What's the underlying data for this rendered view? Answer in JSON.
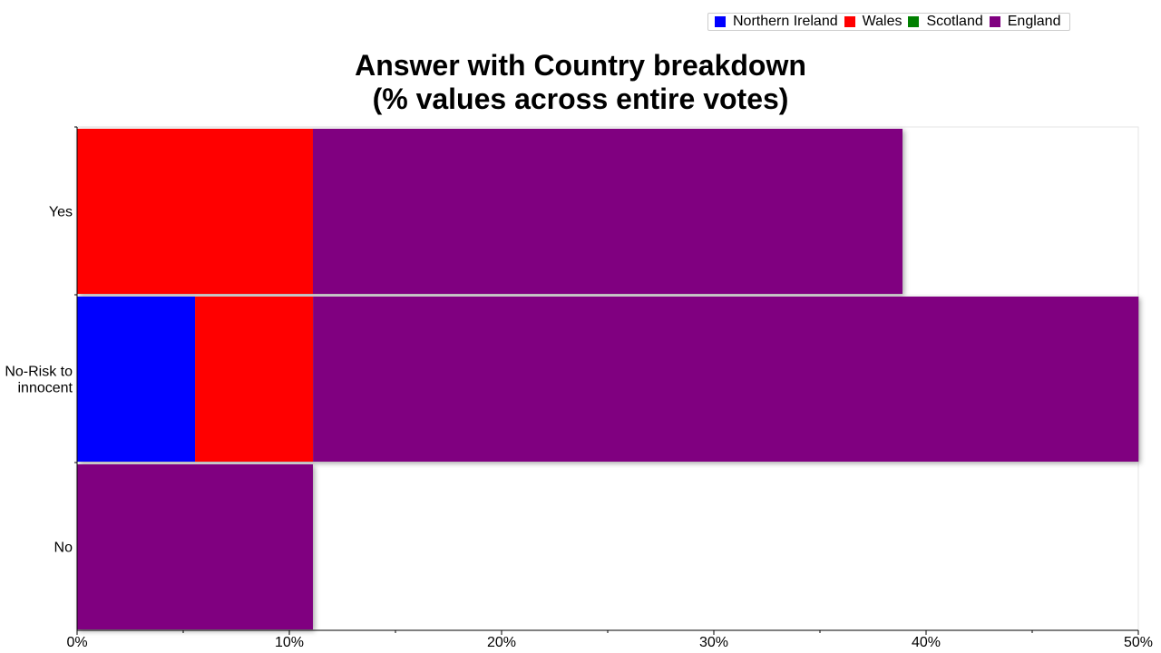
{
  "chart_data": {
    "type": "bar",
    "orientation": "horizontal",
    "stacked": true,
    "title_lines": [
      "Answer with Country breakdown",
      "(% values across entire votes)"
    ],
    "xlabel": "",
    "ylabel": "",
    "xlim": [
      0,
      50
    ],
    "x_ticks": [
      "0%",
      "10%",
      "20%",
      "30%",
      "40%",
      "50%"
    ],
    "categories": [
      "Yes",
      "No-Risk to\ninnocent",
      "No"
    ],
    "series": [
      {
        "name": "Northern Ireland",
        "color": "#0000ff",
        "values": [
          0,
          5.56,
          0
        ]
      },
      {
        "name": "Wales",
        "color": "#ff0000",
        "values": [
          11.11,
          5.56,
          0
        ]
      },
      {
        "name": "Scotland",
        "color": "#008000",
        "values": [
          0,
          0,
          0
        ]
      },
      {
        "name": "England",
        "color": "#800080",
        "values": [
          27.78,
          38.89,
          11.11
        ]
      }
    ],
    "legend_position": "top-right",
    "grid": false
  }
}
